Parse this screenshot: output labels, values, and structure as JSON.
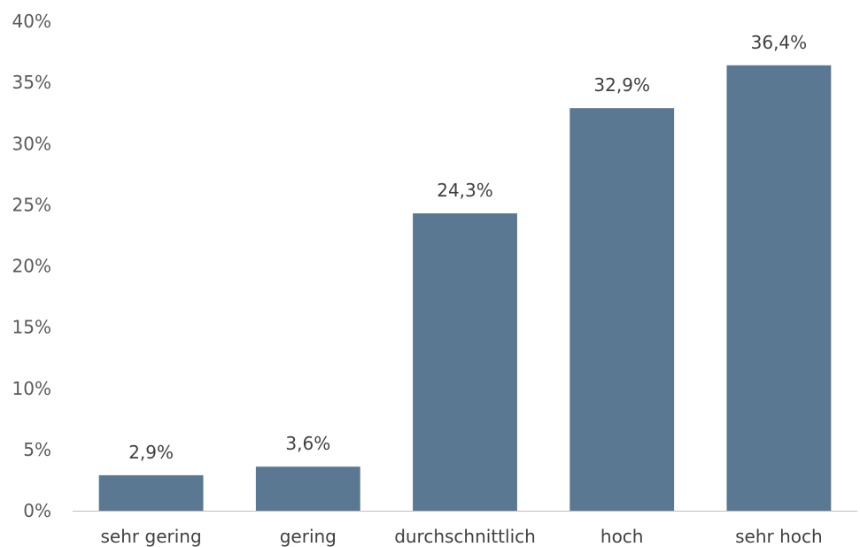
{
  "chart_data": {
    "type": "bar",
    "categories": [
      "sehr gering",
      "gering",
      "durchschnittlich",
      "hoch",
      "sehr hoch"
    ],
    "values": [
      2.9,
      3.6,
      24.3,
      32.9,
      36.4
    ],
    "data_labels": [
      "2,9%",
      "3,6%",
      "24,3%",
      "32,9%",
      "36,4%"
    ],
    "ylim": [
      0,
      40
    ],
    "yticks": [
      0,
      5,
      10,
      15,
      20,
      25,
      30,
      35,
      40
    ],
    "ytick_labels": [
      "0%",
      "5%",
      "10%",
      "15%",
      "20%",
      "25%",
      "30%",
      "35%",
      "40%"
    ],
    "bar_color": "#5b7893",
    "axis_color": "#bfbfbf",
    "grid": false,
    "legend": "none"
  }
}
